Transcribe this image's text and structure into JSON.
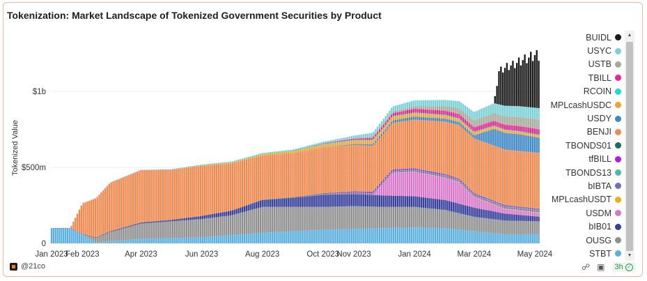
{
  "title": "Tokenization: Market Landscape of Tokenized Government Securities by Product",
  "brand": {
    "logo_icon": "21co-logo-icon",
    "handle": "@21co"
  },
  "tools": {
    "refresh_label": "3h",
    "link_icon": "link-icon",
    "camera_icon": "camera-icon"
  },
  "chart_data": {
    "type": "area",
    "stacked": true,
    "render_style": "bars",
    "ylabel": "Tokenized Value",
    "xlabel": "",
    "x_range": [
      "2023-01-01",
      "2024-05-06"
    ],
    "ylim": [
      0,
      1400000000
    ],
    "y_ticks": [
      0,
      500000000,
      1000000000
    ],
    "y_tick_labels": [
      "0",
      "$500m",
      "$1b"
    ],
    "x_ticks": [
      "2023-01-01",
      "2023-02-01",
      "2023-04-01",
      "2023-06-01",
      "2023-08-01",
      "2023-10-01",
      "2023-11-01",
      "2024-01-01",
      "2024-03-01",
      "2024-05-01"
    ],
    "x_tick_labels": [
      "Jan 2023",
      "Feb 2023",
      "Apr 2023",
      "Jun 2023",
      "Aug 2023",
      "Oct 2023",
      "Nov 2023",
      "Jan 2024",
      "Mar 2024",
      "May 2024"
    ],
    "grid": "horizontal",
    "legend_position": "right",
    "series": [
      {
        "name": "BUIDL",
        "color": "#1a1a1a",
        "points": [
          [
            "2024-03-21",
            0
          ],
          [
            "2024-03-26",
            240000000
          ],
          [
            "2024-04-02",
            280000000
          ],
          [
            "2024-04-10",
            300000000
          ],
          [
            "2024-04-20",
            340000000
          ],
          [
            "2024-05-01",
            380000000
          ],
          [
            "2024-05-06",
            380000000
          ]
        ]
      },
      {
        "name": "USYC",
        "color": "#79d0d6",
        "points": [
          [
            "2023-06-01",
            0
          ],
          [
            "2023-09-01",
            5000000
          ],
          [
            "2023-11-01",
            15000000
          ],
          [
            "2023-12-01",
            30000000
          ],
          [
            "2024-01-01",
            40000000
          ],
          [
            "2024-02-01",
            40000000
          ],
          [
            "2024-03-01",
            55000000
          ],
          [
            "2024-04-01",
            70000000
          ],
          [
            "2024-05-06",
            75000000
          ]
        ]
      },
      {
        "name": "USTB",
        "color": "#a5aa9a",
        "points": [
          [
            "2023-10-01",
            0
          ],
          [
            "2024-01-01",
            15000000
          ],
          [
            "2024-03-01",
            45000000
          ],
          [
            "2024-05-06",
            65000000
          ]
        ]
      },
      {
        "name": "TBILL",
        "color": "#e8288f",
        "points": [
          [
            "2023-09-01",
            0
          ],
          [
            "2023-11-01",
            8000000
          ],
          [
            "2024-01-01",
            25000000
          ],
          [
            "2024-03-01",
            30000000
          ],
          [
            "2024-05-06",
            35000000
          ]
        ]
      },
      {
        "name": "RCOIN",
        "color": "#23d9d3",
        "points": [
          [
            "2023-03-01",
            0
          ],
          [
            "2023-06-01",
            4000000
          ],
          [
            "2024-05-06",
            5000000
          ]
        ]
      },
      {
        "name": "MPLcashUSDC",
        "color": "#eda52f",
        "points": [
          [
            "2023-05-01",
            0
          ],
          [
            "2023-08-01",
            10000000
          ],
          [
            "2023-10-01",
            20000000
          ],
          [
            "2023-12-01",
            25000000
          ],
          [
            "2024-02-01",
            20000000
          ],
          [
            "2024-05-06",
            15000000
          ]
        ]
      },
      {
        "name": "USDY",
        "color": "#3e88c6",
        "points": [
          [
            "2023-10-01",
            0
          ],
          [
            "2024-01-01",
            20000000
          ],
          [
            "2024-03-01",
            20000000
          ],
          [
            "2024-03-21",
            110000000
          ],
          [
            "2024-04-15",
            110000000
          ],
          [
            "2024-05-06",
            100000000
          ]
        ]
      },
      {
        "name": "BENJI",
        "color": "#f5874d",
        "points": [
          [
            "2023-01-01",
            0
          ],
          [
            "2023-01-20",
            0
          ],
          [
            "2023-02-01",
            200000000
          ],
          [
            "2023-03-01",
            320000000
          ],
          [
            "2023-04-01",
            345000000
          ],
          [
            "2023-05-01",
            330000000
          ],
          [
            "2023-06-01",
            330000000
          ],
          [
            "2023-07-01",
            310000000
          ],
          [
            "2023-08-01",
            290000000
          ],
          [
            "2023-09-01",
            290000000
          ],
          [
            "2023-10-01",
            300000000
          ],
          [
            "2023-11-01",
            305000000
          ],
          [
            "2023-12-01",
            300000000
          ],
          [
            "2024-01-01",
            320000000
          ],
          [
            "2024-02-01",
            345000000
          ],
          [
            "2024-03-01",
            360000000
          ],
          [
            "2024-04-01",
            365000000
          ],
          [
            "2024-05-06",
            368000000
          ]
        ]
      },
      {
        "name": "TBONDS01",
        "color": "#226b5d",
        "points": [
          [
            "2023-06-01",
            0
          ],
          [
            "2023-09-01",
            3000000
          ],
          [
            "2024-05-06",
            3000000
          ]
        ]
      },
      {
        "name": "tfBILL",
        "color": "#b01ee0",
        "points": [
          [
            "2023-09-01",
            0
          ],
          [
            "2023-12-01",
            8000000
          ],
          [
            "2024-05-06",
            5000000
          ]
        ]
      },
      {
        "name": "TBONDS13",
        "color": "#4fb8a7",
        "points": [
          [
            "2023-08-01",
            0
          ],
          [
            "2024-05-06",
            3000000
          ]
        ]
      },
      {
        "name": "bIBTA",
        "color": "#6c72b4",
        "points": [
          [
            "2023-09-01",
            0
          ],
          [
            "2023-12-01",
            10000000
          ],
          [
            "2024-05-06",
            12000000
          ]
        ]
      },
      {
        "name": "MPLcashUSDT",
        "color": "#e7b11a",
        "points": [
          [
            "2023-09-01",
            0
          ],
          [
            "2024-05-06",
            4000000
          ]
        ]
      },
      {
        "name": "USDM",
        "color": "#d877c9",
        "points": [
          [
            "2023-11-20",
            0
          ],
          [
            "2023-12-10",
            150000000
          ],
          [
            "2024-01-01",
            160000000
          ],
          [
            "2024-02-15",
            140000000
          ],
          [
            "2024-03-01",
            70000000
          ],
          [
            "2024-04-01",
            30000000
          ],
          [
            "2024-05-06",
            25000000
          ]
        ]
      },
      {
        "name": "bIB01",
        "color": "#36409a",
        "points": [
          [
            "2023-01-01",
            0
          ],
          [
            "2023-05-01",
            10000000
          ],
          [
            "2023-07-01",
            30000000
          ],
          [
            "2023-09-01",
            60000000
          ],
          [
            "2023-10-01",
            80000000
          ],
          [
            "2023-11-01",
            80000000
          ],
          [
            "2024-01-01",
            70000000
          ],
          [
            "2024-03-01",
            60000000
          ],
          [
            "2024-05-06",
            30000000
          ]
        ]
      },
      {
        "name": "OUSG",
        "color": "#8f8f8f",
        "points": [
          [
            "2023-01-01",
            0
          ],
          [
            "2023-02-01",
            0
          ],
          [
            "2023-03-01",
            60000000
          ],
          [
            "2023-04-01",
            100000000
          ],
          [
            "2023-06-01",
            120000000
          ],
          [
            "2023-07-01",
            130000000
          ],
          [
            "2023-08-01",
            170000000
          ],
          [
            "2023-09-01",
            160000000
          ],
          [
            "2023-10-01",
            150000000
          ],
          [
            "2023-11-01",
            150000000
          ],
          [
            "2023-12-01",
            140000000
          ],
          [
            "2024-01-01",
            135000000
          ],
          [
            "2024-02-01",
            120000000
          ],
          [
            "2024-03-01",
            95000000
          ],
          [
            "2024-04-01",
            90000000
          ],
          [
            "2024-05-06",
            85000000
          ]
        ]
      },
      {
        "name": "STBT",
        "color": "#5aaee0",
        "points": [
          [
            "2023-01-01",
            100000000
          ],
          [
            "2023-01-20",
            100000000
          ],
          [
            "2023-02-01",
            60000000
          ],
          [
            "2023-02-15",
            5000000
          ],
          [
            "2023-03-01",
            15000000
          ],
          [
            "2023-04-01",
            30000000
          ],
          [
            "2023-06-01",
            40000000
          ],
          [
            "2023-08-01",
            70000000
          ],
          [
            "2023-10-01",
            90000000
          ],
          [
            "2023-12-01",
            100000000
          ],
          [
            "2024-01-01",
            105000000
          ],
          [
            "2024-02-01",
            100000000
          ],
          [
            "2024-03-01",
            80000000
          ],
          [
            "2024-04-01",
            60000000
          ],
          [
            "2024-05-06",
            60000000
          ]
        ]
      }
    ]
  }
}
